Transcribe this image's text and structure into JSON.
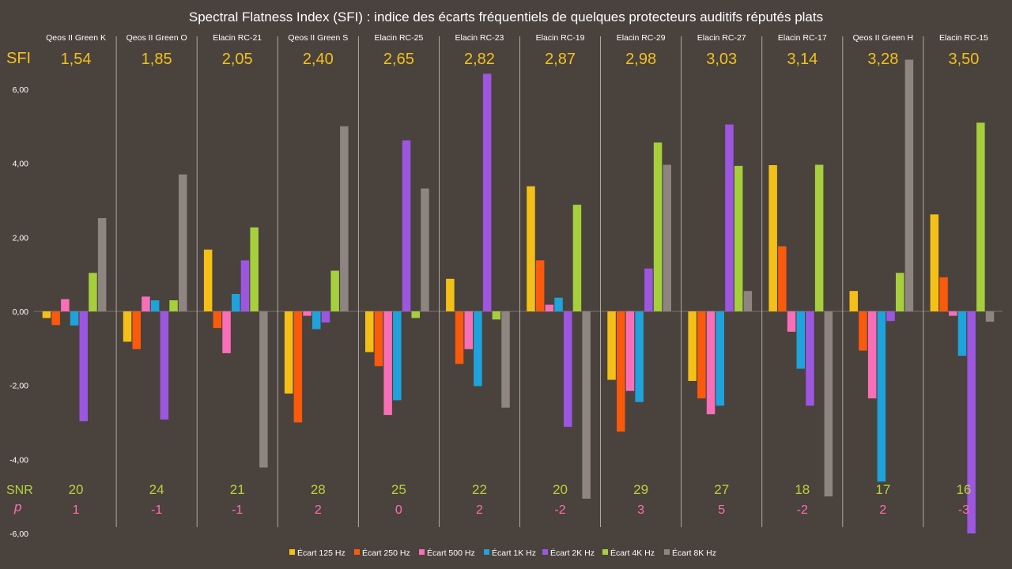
{
  "chart_data": {
    "type": "bar",
    "title": "Spectral Flatness Index (SFI) : indice des écarts fréquentiels de quelques protecteurs auditifs réputés plats",
    "categories": [
      "Qeos II Green K",
      "Qeos II Green O",
      "Elacin RC-21",
      "Qeos II Green S",
      "Elacin RC-25",
      "Elacin RC-23",
      "Elacin RC-19",
      "Elacin RC-29",
      "Elacin RC-27",
      "Elacin RC-17",
      "Qeos II Green H",
      "Elacin RC-15"
    ],
    "row_labels": {
      "sfi": "SFI",
      "snr": "SNR",
      "p": "p"
    },
    "sfi": [
      "1,54",
      "1,85",
      "2,05",
      "2,40",
      "2,65",
      "2,82",
      "2,87",
      "2,98",
      "3,03",
      "3,14",
      "3,28",
      "3,50"
    ],
    "snr": [
      "20",
      "24",
      "21",
      "28",
      "25",
      "22",
      "20",
      "29",
      "27",
      "18",
      "17",
      "16"
    ],
    "p": [
      "1",
      "-1",
      "-1",
      "2",
      "0",
      "2",
      "-2",
      "3",
      "5",
      "-2",
      "2",
      "-3"
    ],
    "ylim": [
      -6,
      6
    ],
    "yticks": [
      6,
      4,
      2,
      0,
      -2,
      -4,
      -6
    ],
    "ytick_labels": [
      "6,00",
      "4,00",
      "2,00",
      "0,00",
      "-2,00",
      "-4,00",
      "-6,00"
    ],
    "legend_position": "bottom",
    "series": [
      {
        "name": "Écart 125 Hz",
        "color": "#f5c016",
        "values": [
          -0.18,
          -0.82,
          1.67,
          -2.22,
          -1.1,
          0.88,
          3.38,
          -1.85,
          -1.88,
          3.95,
          0.55,
          2.62
        ]
      },
      {
        "name": "Écart 250 Hz",
        "color": "#fa5a0c",
        "values": [
          -0.37,
          -1.02,
          -0.45,
          -3.0,
          -1.48,
          -1.42,
          1.38,
          -3.25,
          -2.35,
          1.76,
          -1.06,
          0.92
        ]
      },
      {
        "name": "Écart 500 Hz",
        "color": "#f86fb8",
        "values": [
          0.33,
          0.4,
          -1.13,
          -0.12,
          -2.8,
          -1.02,
          0.18,
          -2.15,
          -2.78,
          -0.55,
          -2.35,
          -0.12
        ]
      },
      {
        "name": "Écart 1K Hz",
        "color": "#1ea3dc",
        "values": [
          -0.38,
          0.3,
          0.47,
          -0.48,
          -2.4,
          -2.02,
          0.37,
          -2.45,
          -2.55,
          -1.55,
          -4.6,
          -1.2
        ]
      },
      {
        "name": "Écart 2K Hz",
        "color": "#9c56e0",
        "values": [
          -2.97,
          -2.92,
          1.38,
          -0.3,
          4.62,
          6.42,
          -3.12,
          1.16,
          5.05,
          -2.55,
          -0.26,
          -6.0
        ]
      },
      {
        "name": "Écart 4K Hz",
        "color": "#a6cf3c",
        "values": [
          1.04,
          0.3,
          2.27,
          1.1,
          -0.18,
          -0.22,
          2.88,
          4.56,
          3.93,
          3.96,
          1.04,
          5.1
        ]
      },
      {
        "name": "Écart 8K Hz",
        "color": "#8e8480",
        "values": [
          2.52,
          3.7,
          -4.22,
          5.0,
          3.32,
          -2.6,
          -5.06,
          3.96,
          0.55,
          -5.0,
          6.8,
          -0.28
        ]
      }
    ]
  }
}
